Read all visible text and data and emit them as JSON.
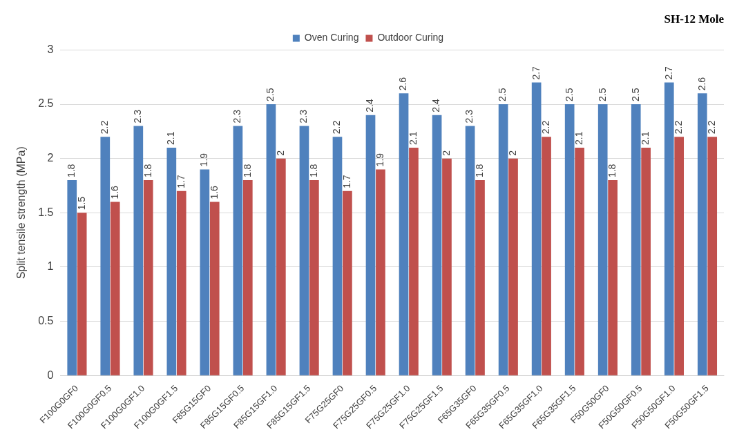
{
  "chart_data": {
    "type": "bar",
    "title": "SH-12 Mole",
    "ylabel": "Split tensile strength (MPa)",
    "categories": [
      "F100G0GF0",
      "F100G0GF0.5",
      "F100G0GF1.0",
      "F100G0GF1.5",
      "F85G15GF0",
      "F85G15GF0.5",
      "F85G15GF1.0",
      "F85G15GF1.5",
      "F75G25GF0",
      "F75G25GF0.5",
      "F75G25GF1.0",
      "F75G25GF1.5",
      "F65G35GF0",
      "F65G35GF0.5",
      "F65G35GF1.0",
      "F65G35GF1.5",
      "F50G50GF0",
      "F50G50GF0.5",
      "F50G50GF1.0",
      "F50G50GF1.5"
    ],
    "series": [
      {
        "name": "Oven Curing",
        "color": "#4f81bd",
        "values": [
          1.8,
          2.2,
          2.3,
          2.1,
          1.9,
          2.3,
          2.5,
          2.3,
          2.2,
          2.4,
          2.6,
          2.4,
          2.3,
          2.5,
          2.7,
          2.5,
          2.5,
          2.5,
          2.7,
          2.6
        ]
      },
      {
        "name": "Outdoor Curing",
        "color": "#c0504d",
        "values": [
          1.5,
          1.6,
          1.8,
          1.7,
          1.6,
          1.8,
          2,
          1.8,
          1.7,
          1.9,
          2.1,
          2,
          1.8,
          2,
          2.2,
          2.1,
          1.8,
          2.1,
          2.2,
          2.2
        ]
      }
    ],
    "ylim": [
      0,
      3
    ],
    "yticks": [
      0,
      0.5,
      1,
      1.5,
      2,
      2.5,
      3
    ],
    "grid": "y",
    "legend": "top",
    "data_labels": true
  }
}
